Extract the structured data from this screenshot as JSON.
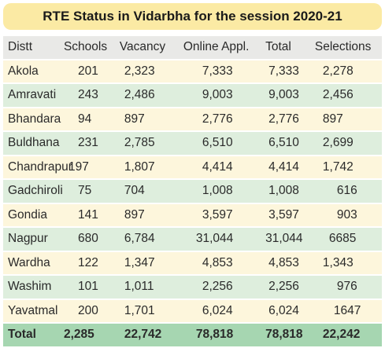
{
  "title": "RTE Status in Vidarbha for the session 2020-21",
  "columns": [
    "Distt",
    "Schools",
    "Vacancy",
    "Online Appl.",
    "Total",
    "Selections"
  ],
  "rows": [
    [
      "Akola",
      "201",
      "2,323",
      "7,333",
      "7,333",
      "2,278"
    ],
    [
      "Amravati",
      "243",
      "2,486",
      "9,003",
      "9,003",
      "2,456"
    ],
    [
      "Bhandara",
      "94",
      "897",
      "2,776",
      "2,776",
      "897"
    ],
    [
      "Buldhana",
      "231",
      "2,785",
      "6,510",
      "6,510",
      "2,699"
    ],
    [
      "Chandrapur",
      "197",
      "1,807",
      "4,414",
      "4,414",
      "1,742"
    ],
    [
      "Gadchiroli",
      "75",
      "704",
      "1,008",
      "1,008",
      "616"
    ],
    [
      "Gondia",
      "141",
      "897",
      "3,597",
      "3,597",
      "903"
    ],
    [
      "Nagpur",
      "680",
      "6,784",
      "31,044",
      "31,044",
      "6685"
    ],
    [
      "Wardha",
      "122",
      "1,347",
      "4,853",
      "4,853",
      "1,343"
    ],
    [
      "Washim",
      "101",
      "1,011",
      "2,256",
      "2,256",
      "976"
    ],
    [
      "Yavatmal",
      "200",
      "1,701",
      "6,024",
      "6,024",
      "1647"
    ]
  ],
  "total": [
    "Total",
    "2,285",
    "22,742",
    "78,818",
    "78,818",
    "22,242"
  ],
  "colors": {
    "title_bg": "#fbeaa4",
    "header_bg": "#e9e9e7",
    "row_odd_bg": "#fdf6dc",
    "row_even_bg": "#deeedd",
    "total_bg": "#a6d6b1"
  }
}
